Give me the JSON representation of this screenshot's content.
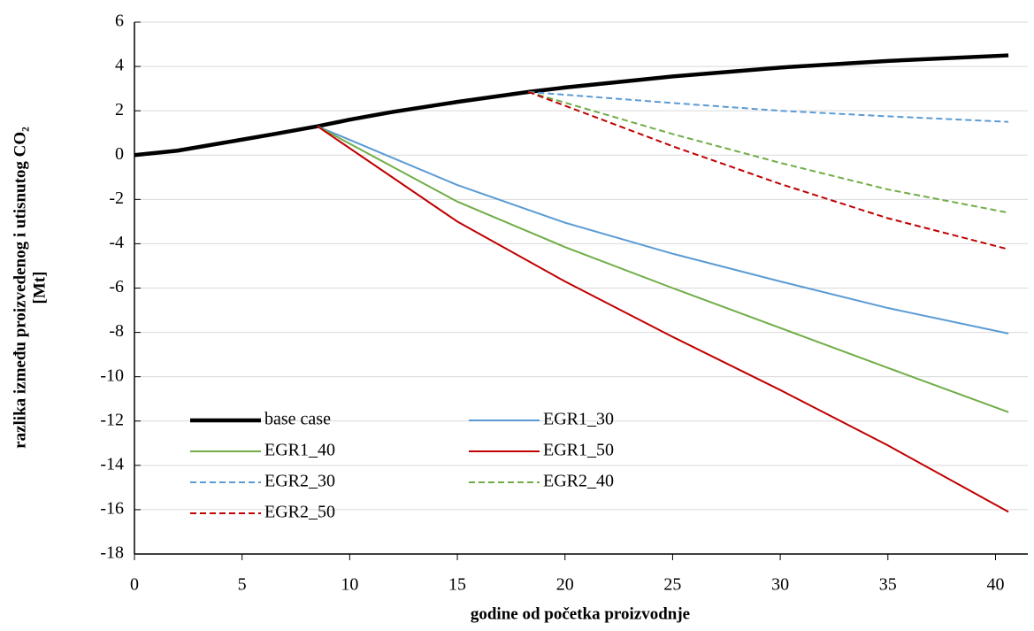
{
  "chart_data": {
    "type": "line",
    "x_label": "godine od početka proizvodnje",
    "y_label": [
      "razlika između proizvedenog i utisnutog CO₂",
      "[Mt]"
    ],
    "xlim": [
      0,
      41.5
    ],
    "xticks": [
      0,
      5,
      10,
      15,
      20,
      25,
      30,
      35,
      40
    ],
    "ylim": [
      -18,
      6
    ],
    "yticks": [
      -18,
      -16,
      -14,
      -12,
      -10,
      -8,
      -6,
      -4,
      -2,
      0,
      2,
      4,
      6
    ],
    "grid": true,
    "legend": "bottom-left",
    "series": [
      {
        "name": "base case",
        "color": "#000000",
        "style": "thick",
        "x": [
          0,
          2,
          5,
          6.5,
          8.5,
          10,
          12,
          15,
          18.3,
          20,
          25,
          30,
          35,
          40.6
        ],
        "values": [
          0,
          0.2,
          0.7,
          0.95,
          1.3,
          1.6,
          1.95,
          2.4,
          2.85,
          3.05,
          3.55,
          3.95,
          4.25,
          4.5
        ]
      },
      {
        "name": "EGR1_30",
        "color": "#5b9bd5",
        "style": "solid",
        "x": [
          8.5,
          15,
          20,
          25,
          30,
          35,
          40.6
        ],
        "values": [
          1.3,
          -1.35,
          -3.05,
          -4.45,
          -5.7,
          -6.9,
          -8.05
        ]
      },
      {
        "name": "EGR1_40",
        "color": "#70ad47",
        "style": "solid",
        "x": [
          8.5,
          15,
          20,
          25,
          30,
          35,
          40.6
        ],
        "values": [
          1.3,
          -2.1,
          -4.15,
          -6.0,
          -7.8,
          -9.6,
          -11.6
        ]
      },
      {
        "name": "EGR1_50",
        "color": "#c00000",
        "style": "solid",
        "x": [
          8.5,
          15,
          20,
          25,
          30,
          35,
          40.6
        ],
        "values": [
          1.3,
          -3.0,
          -5.7,
          -8.2,
          -10.6,
          -13.1,
          -16.1
        ]
      },
      {
        "name": "EGR2_30",
        "color": "#5b9bd5",
        "style": "dashed",
        "x": [
          18.3,
          25,
          30,
          35,
          40.6
        ],
        "values": [
          2.85,
          2.35,
          2.0,
          1.75,
          1.5
        ]
      },
      {
        "name": "EGR2_40",
        "color": "#70ad47",
        "style": "dashed",
        "x": [
          18.3,
          25,
          30,
          35,
          40.6
        ],
        "values": [
          2.85,
          0.95,
          -0.35,
          -1.55,
          -2.6
        ]
      },
      {
        "name": "EGR2_50",
        "color": "#c00000",
        "style": "dashed",
        "x": [
          18.3,
          25,
          30,
          35,
          40.6
        ],
        "values": [
          2.85,
          0.4,
          -1.3,
          -2.85,
          -4.25
        ]
      }
    ]
  }
}
